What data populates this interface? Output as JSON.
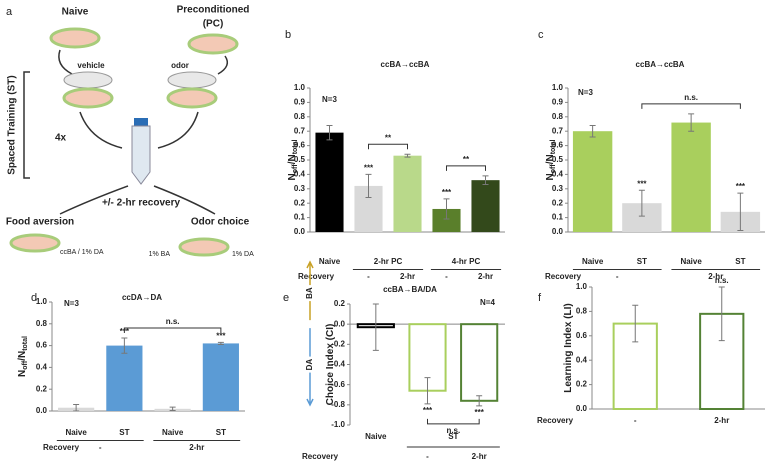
{
  "diagram": {
    "label": "a",
    "naive": "Naive",
    "pc_line1": "Preconditioned",
    "pc_line2": "(PC)",
    "vehicle": "vehicle",
    "odor": "odor",
    "training": "Spaced Training (ST)",
    "repeat": "4x",
    "recovery": "+/- 2-hr recovery",
    "food_aversion": "Food aversion",
    "odor_choice": "Odor choice",
    "food_plate": "ccBA / 1% DA",
    "choice_left": "1% BA",
    "choice_right": "1% DA"
  },
  "chart_data": [
    {
      "type": "bar",
      "label": "b",
      "title": "ccBA→ccBA",
      "note": "N=3",
      "ylabel_parts": [
        {
          "text": "N"
        },
        {
          "text": "off",
          "sub": true
        },
        {
          "text": "/N"
        },
        {
          "text": "total",
          "sub": true
        }
      ],
      "ylim": [
        0,
        1
      ],
      "yticks": [
        {
          "value": 0,
          "label": "0.0"
        },
        0.1,
        0.2,
        0.3,
        0.4,
        0.5,
        0.6,
        0.7,
        0.8,
        0.9,
        {
          "value": 1,
          "label": "1.0"
        }
      ],
      "categories": [
        null,
        "-",
        "2-hr",
        "-",
        "2-hr"
      ],
      "groups": [
        {
          "label": "Naive",
          "count": 1
        },
        {
          "label": "2-hr PC",
          "count": 2
        },
        {
          "label": "4-hr PC",
          "count": 2
        }
      ],
      "group_row": "above",
      "xlabel": "Recovery",
      "values": [
        0.69,
        0.32,
        0.53,
        0.16,
        0.36
      ],
      "errors": [
        0.05,
        0.08,
        0.01,
        0.07,
        0.03
      ],
      "colors": [
        "#000000",
        "#d9d9d9",
        "#b9d98a",
        "#5a7f2b",
        "#33491b"
      ],
      "bar_style": "solid",
      "sig": [
        null,
        "***",
        null,
        "***",
        null
      ],
      "brackets": [
        {
          "from": 1,
          "to": 2,
          "label": "**"
        },
        {
          "from": 3,
          "to": 4,
          "label": "**"
        }
      ]
    },
    {
      "type": "bar",
      "label": "c",
      "title": "ccBA→ccBA",
      "note": "N=3",
      "ylabel_parts": [
        {
          "text": "N"
        },
        {
          "text": "off",
          "sub": true
        },
        {
          "text": "/N"
        },
        {
          "text": "total",
          "sub": true
        }
      ],
      "ylim": [
        0,
        1
      ],
      "yticks": [
        {
          "value": 0,
          "label": "0.0"
        },
        0.1,
        0.2,
        0.3,
        0.4,
        0.5,
        0.6,
        0.7,
        0.8,
        0.9,
        {
          "value": 1,
          "label": "1.0"
        }
      ],
      "categories": [
        "Naive",
        "ST",
        "Naive",
        "ST"
      ],
      "groups": [
        {
          "label": "-",
          "count": 2
        },
        {
          "label": "2-hr",
          "count": 2
        }
      ],
      "group_row": "below",
      "xlabel": "Recovery",
      "values": [
        0.7,
        0.2,
        0.76,
        0.14
      ],
      "errors": [
        0.04,
        0.09,
        0.06,
        0.13
      ],
      "colors": [
        "#a9cf5d",
        "#d9d9d9",
        "#a9cf5d",
        "#d9d9d9"
      ],
      "bar_style": "solid",
      "sig": [
        null,
        "***",
        null,
        "***"
      ],
      "brackets": [
        {
          "from": 1,
          "to": 3,
          "label": "n.s."
        }
      ]
    },
    {
      "type": "bar",
      "label": "d",
      "title": "ccDA→DA",
      "note": "N=3",
      "ylabel_parts": [
        {
          "text": "N"
        },
        {
          "text": "off",
          "sub": true
        },
        {
          "text": "/N"
        },
        {
          "text": "total",
          "sub": true
        }
      ],
      "ylim": [
        0,
        1
      ],
      "yticks": [
        {
          "value": 0,
          "label": "0.0"
        },
        0.2,
        0.4,
        0.6,
        0.8,
        {
          "value": 1,
          "label": "1.0"
        }
      ],
      "categories": [
        "Naive",
        "ST",
        "Naive",
        "ST"
      ],
      "groups": [
        {
          "label": "-",
          "count": 2
        },
        {
          "label": "2-hr",
          "count": 2
        }
      ],
      "group_row": "below",
      "xlabel": "Recovery",
      "values": [
        0.03,
        0.6,
        0.02,
        0.62
      ],
      "errors": [
        0.03,
        0.07,
        0.015,
        0.01
      ],
      "colors": [
        "#d9d9d9",
        "#5b9bd5",
        "#d9d9d9",
        "#5b9bd5"
      ],
      "bar_style": "solid",
      "sig": [
        null,
        "***",
        null,
        "***"
      ],
      "brackets": [
        {
          "from": 1,
          "to": 3,
          "label": "n.s."
        }
      ]
    },
    {
      "type": "bar",
      "label": "e",
      "title": "ccBA→BA/DA",
      "note": "N=4",
      "ylabel_parts": [
        {
          "text": "Choice Index (CI)"
        }
      ],
      "direction_labels": {
        "up": "BA",
        "down": "DA"
      },
      "ylim": [
        -1,
        0.2
      ],
      "yticks": [
        0.2,
        {
          "value": 0,
          "label": "0.0"
        },
        -0.2,
        -0.4,
        -0.6,
        -0.8,
        {
          "value": -1,
          "label": "-1.0"
        }
      ],
      "categories": [
        null,
        "-",
        "2-hr"
      ],
      "groups": [
        {
          "label": "Naive",
          "count": 1
        },
        {
          "label": "ST",
          "count": 2
        }
      ],
      "group_row": "above",
      "xlabel": "Recovery",
      "values": [
        -0.03,
        -0.66,
        -0.76
      ],
      "errors": [
        0.23,
        0.13,
        0.05
      ],
      "colors": [
        "#000000",
        "#a9cf5d",
        "#548235"
      ],
      "bar_style": "outline",
      "sig": [
        null,
        "***",
        "***"
      ],
      "brackets": [
        {
          "from": 1,
          "to": 2,
          "label": "n.s."
        }
      ]
    },
    {
      "type": "bar",
      "label": "f",
      "ylabel_parts": [
        {
          "text": "Learning Index (LI)"
        }
      ],
      "ylim": [
        0,
        1
      ],
      "yticks": [
        {
          "value": 0,
          "label": "0.0"
        },
        0.2,
        0.4,
        0.6,
        0.8,
        {
          "value": 1,
          "label": "1.0"
        }
      ],
      "categories": [
        "-",
        "2-hr"
      ],
      "xlabel": "Recovery",
      "values": [
        0.7,
        0.78
      ],
      "errors": [
        0.15,
        0.22
      ],
      "colors": [
        "#a9cf5d",
        "#548235"
      ],
      "bar_style": "outline",
      "sig": [
        null,
        "n.s."
      ],
      "brackets": []
    }
  ]
}
